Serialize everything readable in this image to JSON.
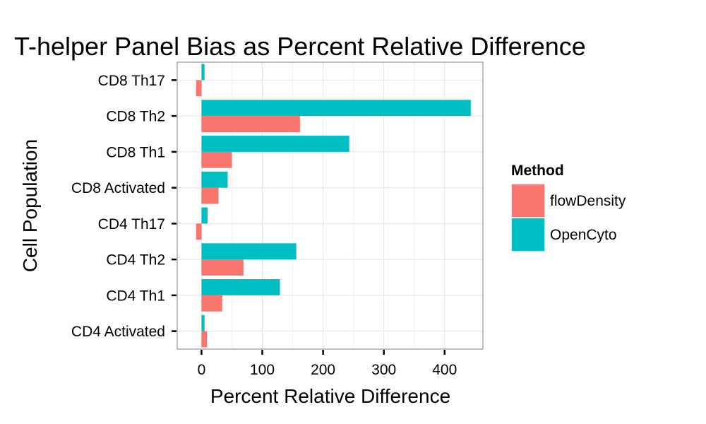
{
  "chart_data": {
    "type": "bar",
    "orientation": "horizontal",
    "title": "T-helper Panel Bias as Percent Relative Difference",
    "xlabel": "Percent Relative Difference",
    "ylabel": "Cell Population",
    "categories": [
      "CD8 Th17",
      "CD8 Th2",
      "CD8 Th1",
      "CD8 Activated",
      "CD4 Th17",
      "CD4 Th2",
      "CD4 Th1",
      "CD4 Activated"
    ],
    "series": [
      {
        "name": "flowDensity",
        "color": "#F8766D",
        "values": [
          -9,
          162,
          50,
          28,
          -9,
          69,
          34,
          9
        ]
      },
      {
        "name": "OpenCyto",
        "color": "#00BFC4",
        "values": [
          5,
          443,
          243,
          43,
          10,
          156,
          129,
          5
        ]
      }
    ],
    "xlim": [
      -40,
      463
    ],
    "xticks": [
      0,
      100,
      200,
      300,
      400
    ],
    "grid": true,
    "legend": {
      "title": "Method",
      "position": "right"
    }
  }
}
